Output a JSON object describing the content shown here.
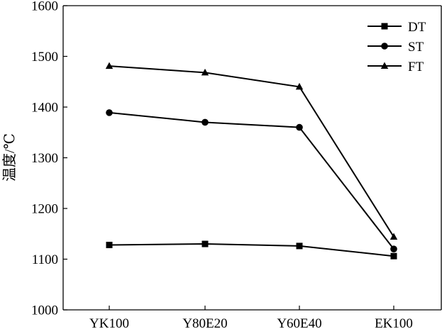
{
  "chart_data": {
    "type": "line",
    "categories": [
      "YK100",
      "Y80E20",
      "Y60E40",
      "EK100"
    ],
    "series": [
      {
        "name": "DT",
        "marker": "square",
        "values": [
          1128,
          1130,
          1126,
          1106
        ]
      },
      {
        "name": "ST",
        "marker": "circle",
        "values": [
          1389,
          1370,
          1360,
          1120
        ]
      },
      {
        "name": "FT",
        "marker": "triangle",
        "values": [
          1481,
          1468,
          1440,
          1144
        ]
      }
    ],
    "title": "",
    "xlabel": "",
    "ylabel": "温度/℃",
    "ylim": [
      1000,
      1600
    ],
    "yticks": [
      1000,
      1100,
      1200,
      1300,
      1400,
      1500,
      1600
    ],
    "grid": false,
    "legend": "top-right",
    "colors": {
      "line": "#000000",
      "background": "#ffffff"
    }
  }
}
